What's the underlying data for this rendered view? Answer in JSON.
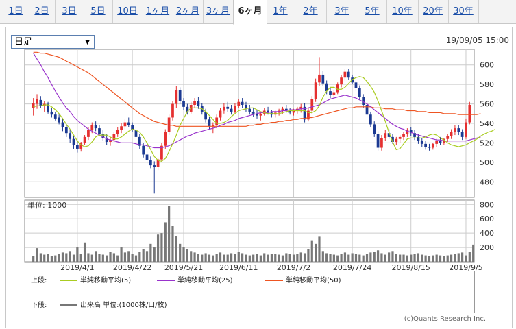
{
  "tabs": [
    {
      "label": "1日",
      "active": false
    },
    {
      "label": "2日",
      "active": false
    },
    {
      "label": "3日",
      "active": false
    },
    {
      "label": "5日",
      "active": false
    },
    {
      "label": "10日",
      "active": false
    },
    {
      "label": "1ヶ月",
      "active": false
    },
    {
      "label": "2ヶ月",
      "active": false
    },
    {
      "label": "3ヶ月",
      "active": false
    },
    {
      "label": "6ヶ月",
      "active": true
    },
    {
      "label": "1年",
      "active": false
    },
    {
      "label": "2年",
      "active": false
    },
    {
      "label": "3年",
      "active": false
    },
    {
      "label": "5年",
      "active": false
    },
    {
      "label": "10年",
      "active": false
    },
    {
      "label": "20年",
      "active": false
    },
    {
      "label": "30年",
      "active": false
    }
  ],
  "period_select": {
    "value": "日足"
  },
  "datetime": "19/09/05 15:00",
  "copyright": "(c)Quants Research Inc.",
  "colors": {
    "up": "#e53030",
    "down": "#1c3a92",
    "ma5": "#aacc22",
    "ma25": "#9933cc",
    "ma50": "#ee5522",
    "volume": "#777777",
    "grid": "#cccccc"
  },
  "legend": {
    "upper_label": "上段:",
    "lower_label": "下段:",
    "ma5": "単純移動平均(5)",
    "ma25": "単純移動平均(25)",
    "ma50": "単純移動平均(50)",
    "volume": "出来高 単位:(1000株/口/枚)"
  },
  "chart_data": [
    {
      "type": "candlestick",
      "y_ticks": [
        480,
        500,
        520,
        540,
        560,
        580,
        600
      ],
      "ylim": [
        464,
        616
      ],
      "x_tick_labels": [
        "2019/4/1",
        "2019/4/22",
        "2019/5/21",
        "2019/6/11",
        "2019/7/2",
        "2019/7/24",
        "2019/8/15",
        "2019/9/5"
      ],
      "x_tick_index": [
        12,
        27,
        41,
        56,
        71,
        87,
        103,
        118
      ],
      "grid": true,
      "candles": [
        [
          556,
          566,
          548,
          561
        ],
        [
          560,
          570,
          555,
          565
        ],
        [
          564,
          568,
          556,
          558
        ],
        [
          558,
          563,
          552,
          560
        ],
        [
          560,
          562,
          550,
          552
        ],
        [
          552,
          556,
          546,
          549
        ],
        [
          549,
          552,
          543,
          545
        ],
        [
          546,
          549,
          539,
          541
        ],
        [
          541,
          545,
          532,
          536
        ],
        [
          536,
          539,
          526,
          530
        ],
        [
          530,
          533,
          520,
          524
        ],
        [
          524,
          527,
          514,
          518
        ],
        [
          518,
          522,
          510,
          514
        ],
        [
          514,
          521,
          511,
          520
        ],
        [
          520,
          528,
          518,
          526
        ],
        [
          526,
          536,
          523,
          533
        ],
        [
          533,
          541,
          530,
          538
        ],
        [
          538,
          542,
          532,
          535
        ],
        [
          535,
          538,
          527,
          529
        ],
        [
          529,
          533,
          522,
          525
        ],
        [
          525,
          529,
          518,
          521
        ],
        [
          521,
          526,
          517,
          523
        ],
        [
          523,
          531,
          521,
          529
        ],
        [
          529,
          536,
          526,
          533
        ],
        [
          533,
          540,
          530,
          537
        ],
        [
          537,
          544,
          534,
          541
        ],
        [
          541,
          546,
          536,
          538
        ],
        [
          538,
          541,
          531,
          533
        ],
        [
          533,
          536,
          524,
          526
        ],
        [
          526,
          529,
          514,
          517
        ],
        [
          517,
          520,
          505,
          508
        ],
        [
          508,
          512,
          498,
          502
        ],
        [
          502,
          506,
          494,
          497
        ],
        [
          497,
          501,
          468,
          495
        ],
        [
          495,
          505,
          492,
          503
        ],
        [
          503,
          520,
          500,
          517
        ],
        [
          517,
          534,
          514,
          531
        ],
        [
          531,
          549,
          528,
          546
        ],
        [
          546,
          563,
          543,
          560
        ],
        [
          560,
          578,
          556,
          574
        ],
        [
          574,
          577,
          560,
          563
        ],
        [
          563,
          566,
          554,
          557
        ],
        [
          557,
          560,
          549,
          552
        ],
        [
          552,
          562,
          550,
          559
        ],
        [
          559,
          566,
          556,
          563
        ],
        [
          563,
          567,
          555,
          558
        ],
        [
          558,
          561,
          549,
          552
        ],
        [
          552,
          555,
          541,
          544
        ],
        [
          544,
          547,
          534,
          537
        ],
        [
          537,
          541,
          530,
          538
        ],
        [
          538,
          549,
          535,
          546
        ],
        [
          546,
          556,
          543,
          553
        ],
        [
          553,
          561,
          550,
          557
        ],
        [
          557,
          562,
          552,
          555
        ],
        [
          555,
          559,
          549,
          552
        ],
        [
          552,
          561,
          550,
          558
        ],
        [
          558,
          565,
          556,
          562
        ],
        [
          562,
          566,
          556,
          559
        ],
        [
          559,
          562,
          552,
          555
        ],
        [
          555,
          559,
          549,
          552
        ],
        [
          552,
          556,
          547,
          550
        ],
        [
          550,
          554,
          545,
          548
        ],
        [
          548,
          552,
          543,
          550
        ],
        [
          550,
          556,
          548,
          553
        ],
        [
          553,
          557,
          549,
          551
        ],
        [
          551,
          554,
          546,
          549
        ],
        [
          549,
          553,
          546,
          551
        ],
        [
          551,
          555,
          548,
          553
        ],
        [
          553,
          557,
          550,
          555
        ],
        [
          555,
          559,
          551,
          553
        ],
        [
          553,
          556,
          549,
          551
        ],
        [
          551,
          555,
          548,
          553
        ],
        [
          553,
          557,
          550,
          555
        ],
        [
          555,
          560,
          551,
          557
        ],
        [
          557,
          561,
          541,
          544
        ],
        [
          544,
          556,
          542,
          553
        ],
        [
          553,
          568,
          550,
          565
        ],
        [
          565,
          586,
          562,
          582
        ],
        [
          582,
          608,
          578,
          590
        ],
        [
          590,
          594,
          578,
          581
        ],
        [
          581,
          584,
          570,
          573
        ],
        [
          573,
          576,
          566,
          569
        ],
        [
          569,
          574,
          566,
          572
        ],
        [
          572,
          582,
          570,
          580
        ],
        [
          580,
          590,
          577,
          587
        ],
        [
          587,
          596,
          584,
          593
        ],
        [
          593,
          596,
          585,
          587
        ],
        [
          587,
          590,
          580,
          582
        ],
        [
          582,
          585,
          573,
          576
        ],
        [
          576,
          579,
          564,
          567
        ],
        [
          567,
          570,
          556,
          559
        ],
        [
          559,
          562,
          546,
          549
        ],
        [
          549,
          552,
          536,
          539
        ],
        [
          539,
          542,
          526,
          529
        ],
        [
          529,
          532,
          512,
          515
        ],
        [
          515,
          528,
          512,
          525
        ],
        [
          525,
          533,
          522,
          530
        ],
        [
          530,
          534,
          524,
          526
        ],
        [
          526,
          529,
          519,
          521
        ],
        [
          521,
          526,
          518,
          524
        ],
        [
          524,
          528,
          520,
          526
        ],
        [
          526,
          531,
          523,
          529
        ],
        [
          529,
          535,
          526,
          533
        ],
        [
          533,
          536,
          527,
          530
        ],
        [
          530,
          533,
          523,
          526
        ],
        [
          526,
          529,
          519,
          522
        ],
        [
          522,
          525,
          516,
          519
        ],
        [
          519,
          522,
          513,
          516
        ],
        [
          516,
          519,
          512,
          515
        ],
        [
          515,
          520,
          513,
          519
        ],
        [
          519,
          524,
          516,
          522
        ],
        [
          522,
          526,
          518,
          520
        ],
        [
          520,
          525,
          518,
          524
        ],
        [
          524,
          529,
          521,
          527
        ],
        [
          527,
          534,
          524,
          531
        ],
        [
          531,
          538,
          528,
          535
        ],
        [
          535,
          538,
          528,
          531
        ],
        [
          531,
          534,
          523,
          526
        ],
        [
          526,
          545,
          524,
          541
        ],
        [
          541,
          562,
          539,
          559
        ]
      ],
      "ma5": [
        557,
        558,
        558,
        559,
        559,
        557,
        554,
        550,
        545,
        539,
        534,
        528,
        522,
        518,
        516,
        517,
        521,
        526,
        528,
        528,
        528,
        526,
        524,
        524,
        526,
        529,
        532,
        534,
        533,
        531,
        526,
        520,
        513,
        506,
        502,
        501,
        504,
        511,
        519,
        528,
        538,
        545,
        552,
        556,
        556,
        556,
        555,
        552,
        548,
        544,
        540,
        540,
        541,
        543,
        547,
        550,
        553,
        554,
        555,
        556,
        556,
        554,
        552,
        551,
        550,
        550,
        550,
        550,
        551,
        552,
        553,
        553,
        553,
        553,
        553,
        551,
        551,
        553,
        558,
        567,
        573,
        577,
        577,
        575,
        575,
        577,
        581,
        585,
        587,
        588,
        587,
        583,
        578,
        572,
        563,
        553,
        542,
        531,
        521,
        513,
        514,
        519,
        524,
        525,
        525,
        525,
        525,
        526,
        528,
        529,
        528,
        525,
        523,
        520,
        518,
        517,
        516,
        517,
        518,
        520,
        522,
        524,
        527,
        529,
        531,
        532,
        534
      ],
      "ma25": [
        612,
        606,
        600,
        593,
        587,
        580,
        573,
        567,
        561,
        556,
        552,
        547,
        543,
        540,
        537,
        534,
        532,
        530,
        528,
        526,
        524,
        523,
        522,
        521,
        520,
        520,
        520,
        520,
        519,
        518,
        518,
        517,
        516,
        515,
        515,
        515,
        516,
        517,
        519,
        521,
        523,
        525,
        527,
        528,
        530,
        531,
        532,
        533,
        534,
        535,
        536,
        538,
        539,
        541,
        542,
        543,
        545,
        546,
        547,
        548,
        549,
        550,
        551,
        551,
        551,
        552,
        552,
        552,
        553,
        553,
        554,
        554,
        554,
        555,
        555,
        556,
        557,
        558,
        559,
        561,
        563,
        565,
        566,
        567,
        568,
        569,
        568,
        567,
        566,
        564,
        562,
        560,
        557,
        554,
        551,
        548,
        545,
        542,
        539,
        537,
        535,
        534,
        532,
        531,
        529,
        528,
        527,
        526,
        525,
        524,
        523,
        523,
        522,
        522,
        522,
        522,
        522,
        522,
        522,
        523,
        524,
        525,
        526
      ],
      "ma50": [
        613,
        613,
        612,
        612,
        611,
        610,
        609,
        608,
        606,
        604,
        602,
        600,
        598,
        596,
        594,
        592,
        589,
        586,
        583,
        580,
        577,
        574,
        571,
        568,
        565,
        562,
        559,
        556,
        553,
        550,
        548,
        546,
        544,
        542,
        541,
        540,
        539,
        538,
        538,
        537,
        537,
        537,
        537,
        537,
        537,
        537,
        537,
        537,
        537,
        537,
        537,
        537,
        537,
        537,
        537,
        537,
        537,
        537,
        537,
        538,
        538,
        539,
        539,
        540,
        540,
        541,
        541,
        542,
        542,
        543,
        543,
        544,
        544,
        545,
        545,
        546,
        546,
        547,
        548,
        549,
        550,
        551,
        552,
        553,
        554,
        555,
        556,
        556,
        557,
        557,
        557,
        557,
        557,
        556,
        556,
        556,
        555,
        555,
        555,
        554,
        554,
        554,
        553,
        553,
        553,
        552,
        552,
        552,
        551,
        551,
        551,
        551,
        550,
        550,
        550,
        550,
        549,
        549,
        549,
        549,
        549,
        549,
        550
      ]
    },
    {
      "type": "bar",
      "title": "単位: 1000",
      "y_ticks": [
        200,
        400,
        600,
        800
      ],
      "ylim": [
        0,
        860
      ],
      "values": [
        80,
        190,
        120,
        100,
        110,
        80,
        90,
        110,
        130,
        120,
        150,
        100,
        200,
        110,
        270,
        120,
        100,
        150,
        110,
        100,
        90,
        140,
        120,
        90,
        200,
        130,
        150,
        110,
        90,
        140,
        180,
        150,
        250,
        200,
        380,
        400,
        550,
        780,
        500,
        360,
        250,
        200,
        180,
        150,
        130,
        110,
        100,
        120,
        100,
        90,
        110,
        130,
        100,
        100,
        120,
        110,
        140,
        120,
        100,
        90,
        100,
        110,
        90,
        120,
        100,
        110,
        110,
        100,
        90,
        120,
        110,
        100,
        110,
        130,
        120,
        180,
        300,
        250,
        350,
        150,
        120,
        110,
        100,
        90,
        110,
        130,
        100,
        120,
        110,
        100,
        90,
        110,
        130,
        140,
        160,
        120,
        100,
        130,
        150,
        110,
        100,
        100,
        90,
        100,
        110,
        120,
        100,
        90,
        80,
        90,
        100,
        90,
        80,
        90,
        100,
        110,
        120,
        130,
        90,
        140,
        240
      ]
    }
  ]
}
